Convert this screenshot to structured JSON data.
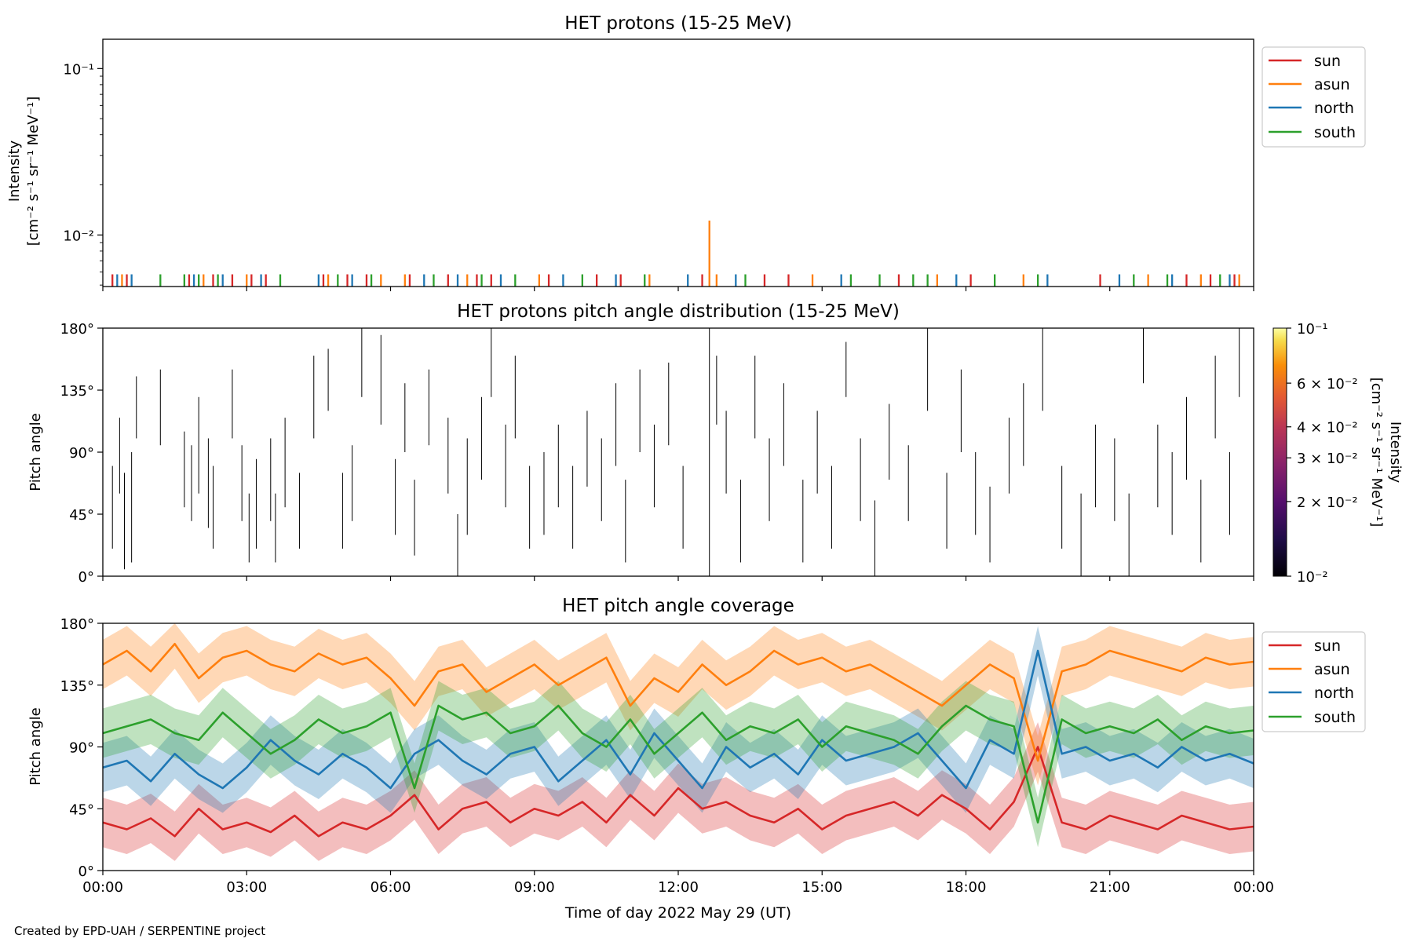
{
  "colors": {
    "sun": "#d62728",
    "asun": "#ff7f0e",
    "north": "#1f77b4",
    "south": "#2ca02c",
    "pad_lines": "#000000"
  },
  "footer": "Created by EPD-UAH / SERPENTINE project",
  "xaxis": {
    "label": "Time of day 2022 May 29 (UT)",
    "range_hours": [
      0,
      24
    ],
    "ticks": [
      {
        "hour": 0,
        "label": "00:00"
      },
      {
        "hour": 3,
        "label": "03:00"
      },
      {
        "hour": 6,
        "label": "06:00"
      },
      {
        "hour": 9,
        "label": "09:00"
      },
      {
        "hour": 12,
        "label": "12:00"
      },
      {
        "hour": 15,
        "label": "15:00"
      },
      {
        "hour": 18,
        "label": "18:00"
      },
      {
        "hour": 21,
        "label": "21:00"
      },
      {
        "hour": 24,
        "label": "00:00"
      }
    ]
  },
  "chart_data": [
    {
      "type": "line",
      "title": "HET protons (15-25 MeV)",
      "ylabel_line1": "Intensity",
      "ylabel_line2": "[cm⁻² s⁻¹ sr⁻¹ MeV⁻¹]",
      "yscale": "log",
      "ylim": [
        0.0049,
        0.15
      ],
      "yticks": [
        {
          "value": 0.01,
          "label": "10⁻²"
        },
        {
          "value": 0.1,
          "label": "10⁻¹"
        }
      ],
      "legend_position": "outside-right",
      "baseline": 0.0049,
      "series": [
        {
          "name": "sun",
          "events": [
            {
              "t": 0.2,
              "v": 0.0058
            },
            {
              "t": 0.5,
              "v": 0.0058
            },
            {
              "t": 1.8,
              "v": 0.0058
            },
            {
              "t": 2.3,
              "v": 0.0058
            },
            {
              "t": 2.7,
              "v": 0.0058
            },
            {
              "t": 3.1,
              "v": 0.0058
            },
            {
              "t": 3.4,
              "v": 0.0058
            },
            {
              "t": 4.6,
              "v": 0.0058
            },
            {
              "t": 5.1,
              "v": 0.0058
            },
            {
              "t": 5.5,
              "v": 0.0058
            },
            {
              "t": 6.4,
              "v": 0.0058
            },
            {
              "t": 7.2,
              "v": 0.0058
            },
            {
              "t": 7.8,
              "v": 0.0058
            },
            {
              "t": 8.1,
              "v": 0.0058
            },
            {
              "t": 9.3,
              "v": 0.0058
            },
            {
              "t": 10.3,
              "v": 0.0058
            },
            {
              "t": 10.8,
              "v": 0.0058
            },
            {
              "t": 12.5,
              "v": 0.0058
            },
            {
              "t": 13.8,
              "v": 0.0058
            },
            {
              "t": 14.3,
              "v": 0.0058
            },
            {
              "t": 16.6,
              "v": 0.0058
            },
            {
              "t": 18.1,
              "v": 0.0058
            },
            {
              "t": 20.8,
              "v": 0.0058
            },
            {
              "t": 22.6,
              "v": 0.0058
            },
            {
              "t": 23.1,
              "v": 0.0058
            },
            {
              "t": 23.6,
              "v": 0.0058
            }
          ]
        },
        {
          "name": "asun",
          "events": [
            {
              "t": 0.4,
              "v": 0.0058
            },
            {
              "t": 2.1,
              "v": 0.0058
            },
            {
              "t": 3.0,
              "v": 0.0058
            },
            {
              "t": 4.7,
              "v": 0.0058
            },
            {
              "t": 5.8,
              "v": 0.0058
            },
            {
              "t": 6.3,
              "v": 0.0058
            },
            {
              "t": 7.6,
              "v": 0.0058
            },
            {
              "t": 9.1,
              "v": 0.0058
            },
            {
              "t": 11.4,
              "v": 0.0058
            },
            {
              "t": 12.65,
              "v": 0.0122
            },
            {
              "t": 12.8,
              "v": 0.0058
            },
            {
              "t": 14.8,
              "v": 0.0058
            },
            {
              "t": 17.4,
              "v": 0.0058
            },
            {
              "t": 19.2,
              "v": 0.0058
            },
            {
              "t": 21.8,
              "v": 0.0058
            },
            {
              "t": 22.9,
              "v": 0.0058
            },
            {
              "t": 23.7,
              "v": 0.0058
            }
          ]
        },
        {
          "name": "north",
          "events": [
            {
              "t": 0.3,
              "v": 0.0058
            },
            {
              "t": 0.6,
              "v": 0.0058
            },
            {
              "t": 1.9,
              "v": 0.0058
            },
            {
              "t": 2.5,
              "v": 0.0058
            },
            {
              "t": 3.3,
              "v": 0.0058
            },
            {
              "t": 4.5,
              "v": 0.0058
            },
            {
              "t": 5.2,
              "v": 0.0058
            },
            {
              "t": 6.7,
              "v": 0.0058
            },
            {
              "t": 7.4,
              "v": 0.0058
            },
            {
              "t": 8.3,
              "v": 0.0058
            },
            {
              "t": 9.6,
              "v": 0.0058
            },
            {
              "t": 10.7,
              "v": 0.0058
            },
            {
              "t": 12.2,
              "v": 0.0058
            },
            {
              "t": 13.2,
              "v": 0.0058
            },
            {
              "t": 15.4,
              "v": 0.0058
            },
            {
              "t": 17.8,
              "v": 0.0058
            },
            {
              "t": 19.7,
              "v": 0.0058
            },
            {
              "t": 21.2,
              "v": 0.0058
            },
            {
              "t": 22.3,
              "v": 0.0058
            },
            {
              "t": 23.5,
              "v": 0.0058
            }
          ]
        },
        {
          "name": "south",
          "events": [
            {
              "t": 1.2,
              "v": 0.0058
            },
            {
              "t": 1.7,
              "v": 0.0058
            },
            {
              "t": 2.0,
              "v": 0.0058
            },
            {
              "t": 2.4,
              "v": 0.0058
            },
            {
              "t": 3.7,
              "v": 0.0058
            },
            {
              "t": 4.9,
              "v": 0.0058
            },
            {
              "t": 5.6,
              "v": 0.0058
            },
            {
              "t": 6.9,
              "v": 0.0058
            },
            {
              "t": 7.9,
              "v": 0.0058
            },
            {
              "t": 8.6,
              "v": 0.0058
            },
            {
              "t": 10.0,
              "v": 0.0058
            },
            {
              "t": 11.3,
              "v": 0.0058
            },
            {
              "t": 13.4,
              "v": 0.0058
            },
            {
              "t": 15.6,
              "v": 0.0058
            },
            {
              "t": 16.2,
              "v": 0.0058
            },
            {
              "t": 16.9,
              "v": 0.0058
            },
            {
              "t": 17.2,
              "v": 0.0058
            },
            {
              "t": 18.6,
              "v": 0.0058
            },
            {
              "t": 19.5,
              "v": 0.0058
            },
            {
              "t": 21.5,
              "v": 0.0058
            },
            {
              "t": 22.2,
              "v": 0.0058
            },
            {
              "t": 23.3,
              "v": 0.0058
            }
          ]
        }
      ]
    },
    {
      "type": "heatmap",
      "title": "HET protons pitch angle distribution (15-25 MeV)",
      "ylabel": "Pitch angle",
      "ylim": [
        0,
        180
      ],
      "yticks": [
        {
          "value": 0,
          "label": "0°"
        },
        {
          "value": 45,
          "label": "45°"
        },
        {
          "value": 90,
          "label": "90°"
        },
        {
          "value": 135,
          "label": "135°"
        },
        {
          "value": 180,
          "label": "180°"
        }
      ],
      "colorbar": {
        "label_line1": "Intensity",
        "label_line2": "[cm⁻² s⁻¹ sr⁻¹ MeV⁻¹]",
        "scale": "log",
        "range": [
          0.01,
          0.1
        ],
        "ticks": [
          {
            "value": 0.1,
            "label": "10⁻¹"
          },
          {
            "value": 0.06,
            "label": "6 × 10⁻²"
          },
          {
            "value": 0.04,
            "label": "4 × 10⁻²"
          },
          {
            "value": 0.03,
            "label": "3 × 10⁻²"
          },
          {
            "value": 0.02,
            "label": "2 × 10⁻²"
          },
          {
            "value": 0.01,
            "label": "10⁻²"
          }
        ]
      },
      "segments": [
        [
          0.2,
          20,
          80
        ],
        [
          0.35,
          60,
          115
        ],
        [
          0.45,
          5,
          75
        ],
        [
          0.6,
          10,
          90
        ],
        [
          0.7,
          100,
          145
        ],
        [
          1.2,
          95,
          150
        ],
        [
          1.7,
          50,
          105
        ],
        [
          1.85,
          40,
          95
        ],
        [
          2.0,
          60,
          130
        ],
        [
          2.2,
          35,
          100
        ],
        [
          2.3,
          20,
          80
        ],
        [
          2.7,
          100,
          150
        ],
        [
          2.9,
          40,
          95
        ],
        [
          3.05,
          10,
          60
        ],
        [
          3.2,
          20,
          85
        ],
        [
          3.5,
          40,
          100
        ],
        [
          3.6,
          10,
          60
        ],
        [
          3.8,
          50,
          115
        ],
        [
          4.1,
          20,
          75
        ],
        [
          4.4,
          100,
          160
        ],
        [
          4.7,
          120,
          165
        ],
        [
          5.0,
          20,
          75
        ],
        [
          5.2,
          40,
          95
        ],
        [
          5.4,
          130,
          180
        ],
        [
          5.8,
          110,
          175
        ],
        [
          6.1,
          30,
          85
        ],
        [
          6.3,
          90,
          140
        ],
        [
          6.5,
          15,
          70
        ],
        [
          6.8,
          95,
          150
        ],
        [
          7.2,
          60,
          115
        ],
        [
          7.4,
          0,
          45
        ],
        [
          7.6,
          30,
          100
        ],
        [
          7.9,
          70,
          130
        ],
        [
          8.1,
          130,
          180
        ],
        [
          8.4,
          50,
          110
        ],
        [
          8.6,
          100,
          160
        ],
        [
          8.9,
          20,
          80
        ],
        [
          9.2,
          30,
          90
        ],
        [
          9.5,
          50,
          110
        ],
        [
          9.8,
          20,
          80
        ],
        [
          10.1,
          65,
          120
        ],
        [
          10.4,
          40,
          100
        ],
        [
          10.7,
          80,
          140
        ],
        [
          10.9,
          10,
          70
        ],
        [
          11.2,
          90,
          150
        ],
        [
          11.5,
          50,
          110
        ],
        [
          11.8,
          95,
          155
        ],
        [
          12.1,
          20,
          80
        ],
        [
          12.65,
          0,
          180
        ],
        [
          12.8,
          110,
          160
        ],
        [
          13.0,
          60,
          120
        ],
        [
          13.3,
          10,
          70
        ],
        [
          13.6,
          100,
          160
        ],
        [
          13.9,
          40,
          100
        ],
        [
          14.2,
          80,
          140
        ],
        [
          14.6,
          10,
          70
        ],
        [
          14.9,
          60,
          120
        ],
        [
          15.2,
          20,
          80
        ],
        [
          15.5,
          130,
          170
        ],
        [
          15.8,
          40,
          100
        ],
        [
          16.1,
          0,
          55
        ],
        [
          16.4,
          70,
          125
        ],
        [
          16.8,
          40,
          95
        ],
        [
          17.2,
          120,
          180
        ],
        [
          17.6,
          20,
          75
        ],
        [
          17.9,
          90,
          150
        ],
        [
          18.2,
          30,
          90
        ],
        [
          18.5,
          10,
          65
        ],
        [
          18.9,
          60,
          115
        ],
        [
          19.2,
          80,
          140
        ],
        [
          19.6,
          120,
          180
        ],
        [
          20.0,
          20,
          80
        ],
        [
          20.4,
          0,
          60
        ],
        [
          20.7,
          50,
          110
        ],
        [
          21.1,
          40,
          100
        ],
        [
          21.4,
          0,
          60
        ],
        [
          21.7,
          140,
          180
        ],
        [
          22.0,
          50,
          110
        ],
        [
          22.3,
          30,
          90
        ],
        [
          22.6,
          70,
          130
        ],
        [
          22.9,
          10,
          70
        ],
        [
          23.2,
          100,
          160
        ],
        [
          23.5,
          30,
          90
        ],
        [
          23.7,
          130,
          180
        ]
      ]
    },
    {
      "type": "line",
      "title": "HET pitch angle coverage",
      "ylabel": "Pitch angle",
      "ylim": [
        0,
        180
      ],
      "yticks": [
        {
          "value": 0,
          "label": "0°"
        },
        {
          "value": 45,
          "label": "45°"
        },
        {
          "value": 90,
          "label": "90°"
        },
        {
          "value": 135,
          "label": "135°"
        },
        {
          "value": 180,
          "label": "180°"
        }
      ],
      "legend_position": "outside-right",
      "band_halfwidth_deg": 18,
      "x_hours": [
        0,
        0.5,
        1,
        1.5,
        2,
        2.5,
        3,
        3.5,
        4,
        4.5,
        5,
        5.5,
        6,
        6.5,
        7,
        7.5,
        8,
        8.5,
        9,
        9.5,
        10,
        10.5,
        11,
        11.5,
        12,
        12.5,
        13,
        13.5,
        14,
        14.5,
        15,
        15.5,
        16,
        16.5,
        17,
        17.5,
        18,
        18.5,
        19,
        19.5,
        20,
        20.5,
        21,
        21.5,
        22,
        22.5,
        23,
        23.5,
        24
      ],
      "series": [
        {
          "name": "sun",
          "values": [
            35,
            30,
            38,
            25,
            45,
            30,
            35,
            28,
            40,
            25,
            35,
            30,
            40,
            55,
            30,
            45,
            50,
            35,
            45,
            40,
            50,
            35,
            55,
            40,
            60,
            45,
            50,
            40,
            35,
            45,
            30,
            40,
            45,
            50,
            40,
            55,
            45,
            30,
            50,
            90,
            35,
            30,
            40,
            35,
            30,
            40,
            35,
            30,
            32
          ]
        },
        {
          "name": "asun",
          "values": [
            150,
            160,
            145,
            165,
            140,
            155,
            160,
            150,
            145,
            158,
            150,
            155,
            140,
            120,
            145,
            150,
            130,
            140,
            150,
            135,
            145,
            155,
            120,
            140,
            130,
            150,
            135,
            145,
            160,
            150,
            155,
            145,
            150,
            140,
            130,
            120,
            135,
            150,
            140,
            80,
            145,
            150,
            160,
            155,
            150,
            145,
            155,
            150,
            152
          ]
        },
        {
          "name": "north",
          "values": [
            75,
            80,
            65,
            85,
            70,
            60,
            75,
            95,
            80,
            70,
            85,
            75,
            60,
            85,
            95,
            80,
            70,
            85,
            90,
            65,
            80,
            95,
            70,
            100,
            80,
            60,
            90,
            75,
            85,
            70,
            95,
            80,
            85,
            90,
            100,
            80,
            60,
            95,
            85,
            160,
            85,
            90,
            80,
            85,
            75,
            90,
            80,
            85,
            78
          ]
        },
        {
          "name": "south",
          "values": [
            100,
            105,
            110,
            100,
            95,
            115,
            100,
            85,
            95,
            110,
            100,
            105,
            115,
            60,
            120,
            110,
            115,
            100,
            105,
            120,
            100,
            90,
            110,
            85,
            100,
            115,
            95,
            105,
            100,
            110,
            90,
            105,
            100,
            95,
            85,
            105,
            120,
            110,
            105,
            35,
            110,
            100,
            105,
            100,
            110,
            95,
            105,
            100,
            102
          ]
        }
      ]
    }
  ]
}
